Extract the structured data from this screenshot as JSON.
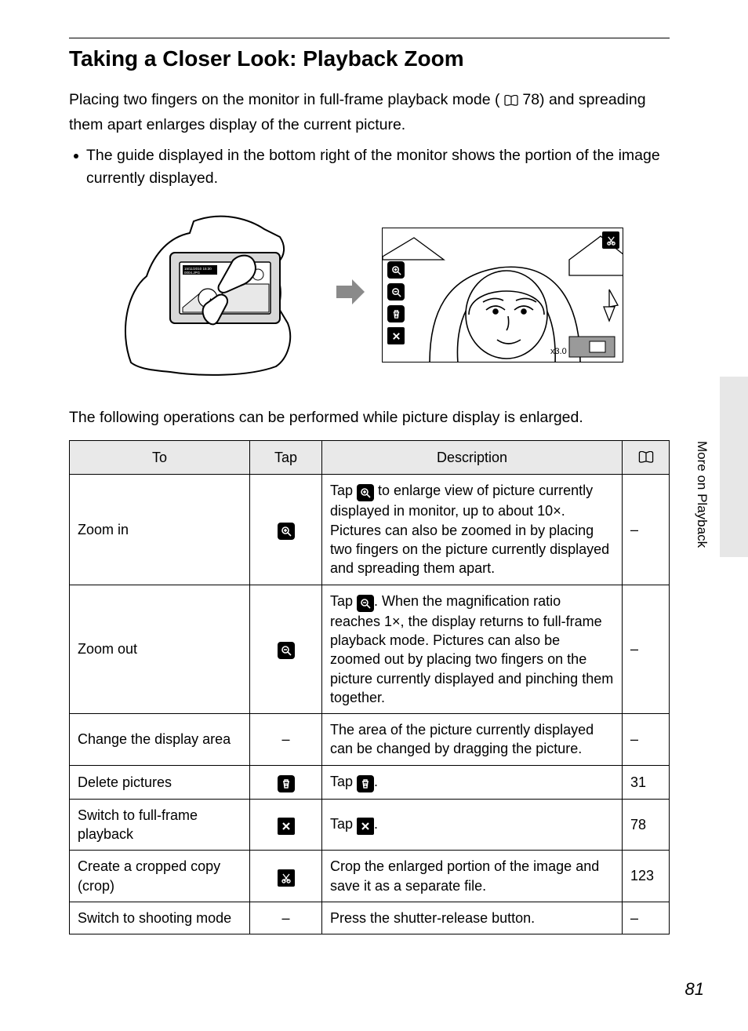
{
  "title": "Taking a Closer Look: Playback Zoom",
  "intro_before": "Placing two fingers on the monitor in full-frame playback mode (",
  "intro_pageref": " 78",
  "intro_after": ") and spreading them apart enlarges display of the current picture.",
  "bullet1": "The guide displayed in the bottom right of the monitor shows the portion of the image currently displayed.",
  "lead2": "The following operations can be performed while picture display is enlarged.",
  "table": {
    "headers": {
      "c1": "To",
      "c2": "Tap",
      "c3": "Description"
    },
    "rows": [
      {
        "to": "Zoom in",
        "tap_icon": "zoom-in",
        "desc_pre": "Tap ",
        "desc_post": " to enlarge view of picture currently displayed in monitor, up to about 10×. Pictures can also be zoomed in by placing two fingers on the picture currently displayed and spreading them apart.",
        "ref": "–"
      },
      {
        "to": "Zoom out",
        "tap_icon": "zoom-out",
        "desc_pre": "Tap ",
        "desc_post": ". When the magnification ratio reaches 1×, the display returns to full-frame playback mode. Pictures can also be zoomed out by placing two fingers on the picture currently displayed and pinching them together.",
        "ref": "–"
      },
      {
        "to": "Change the display area",
        "tap_icon": "none",
        "desc_plain": "The area of the picture currently displayed can be changed by dragging the picture.",
        "ref": "–"
      },
      {
        "to": "Delete pictures",
        "tap_icon": "trash",
        "desc_pre": "Tap ",
        "desc_post": ".",
        "ref": "31"
      },
      {
        "to": "Switch to full-frame playback",
        "tap_icon": "close-x",
        "desc_pre": "Tap ",
        "desc_post": ".",
        "ref": "78"
      },
      {
        "to": "Create a cropped copy (crop)",
        "tap_icon": "crop-scissors",
        "desc_plain": "Crop the enlarged portion of the image and save it as a separate file.",
        "ref": "123"
      },
      {
        "to": "Switch to shooting mode",
        "tap_icon": "none",
        "desc_plain": "Press the shutter-release button.",
        "ref": "–"
      }
    ]
  },
  "side_label": "More on Playback",
  "page_number": "81",
  "colors": {
    "page_bg": "#ffffff",
    "outer_bg": "#9b9b9b",
    "header_cell_bg": "#e9e9e9",
    "side_tab_bg": "#e7e7e7",
    "arrow": "#8a8a8a"
  },
  "zoom_overlay": {
    "camera_timestamp": "15/11/2010 15:30",
    "camera_filename": "0004.JPG",
    "zoom_label": "x3.0"
  }
}
